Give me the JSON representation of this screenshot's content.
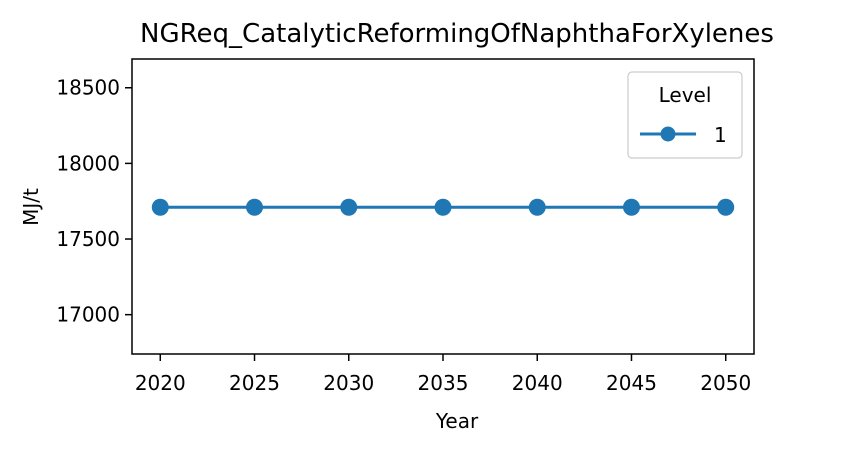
{
  "chart_data": {
    "type": "line",
    "title": "NGReq_CatalyticReformingOfNaphthaForXylenes",
    "xlabel": "Year",
    "ylabel": "MJ/t",
    "x": [
      2020,
      2025,
      2030,
      2035,
      2040,
      2045,
      2050
    ],
    "xticks": [
      "2020",
      "2025",
      "2030",
      "2035",
      "2040",
      "2045",
      "2050"
    ],
    "yticks": [
      "17000",
      "17500",
      "18000",
      "18500"
    ],
    "ytick_values": [
      17000,
      17500,
      18000,
      18500
    ],
    "ylim": [
      16740,
      18690
    ],
    "xlim": [
      2018.5,
      2051.5
    ],
    "legend": {
      "title": "Level",
      "placement": "top-right"
    },
    "grid": false,
    "series": [
      {
        "name": "1",
        "color": "#1f77b4",
        "marker": "circle",
        "values": [
          17710,
          17710,
          17710,
          17710,
          17710,
          17710,
          17710
        ]
      }
    ]
  }
}
